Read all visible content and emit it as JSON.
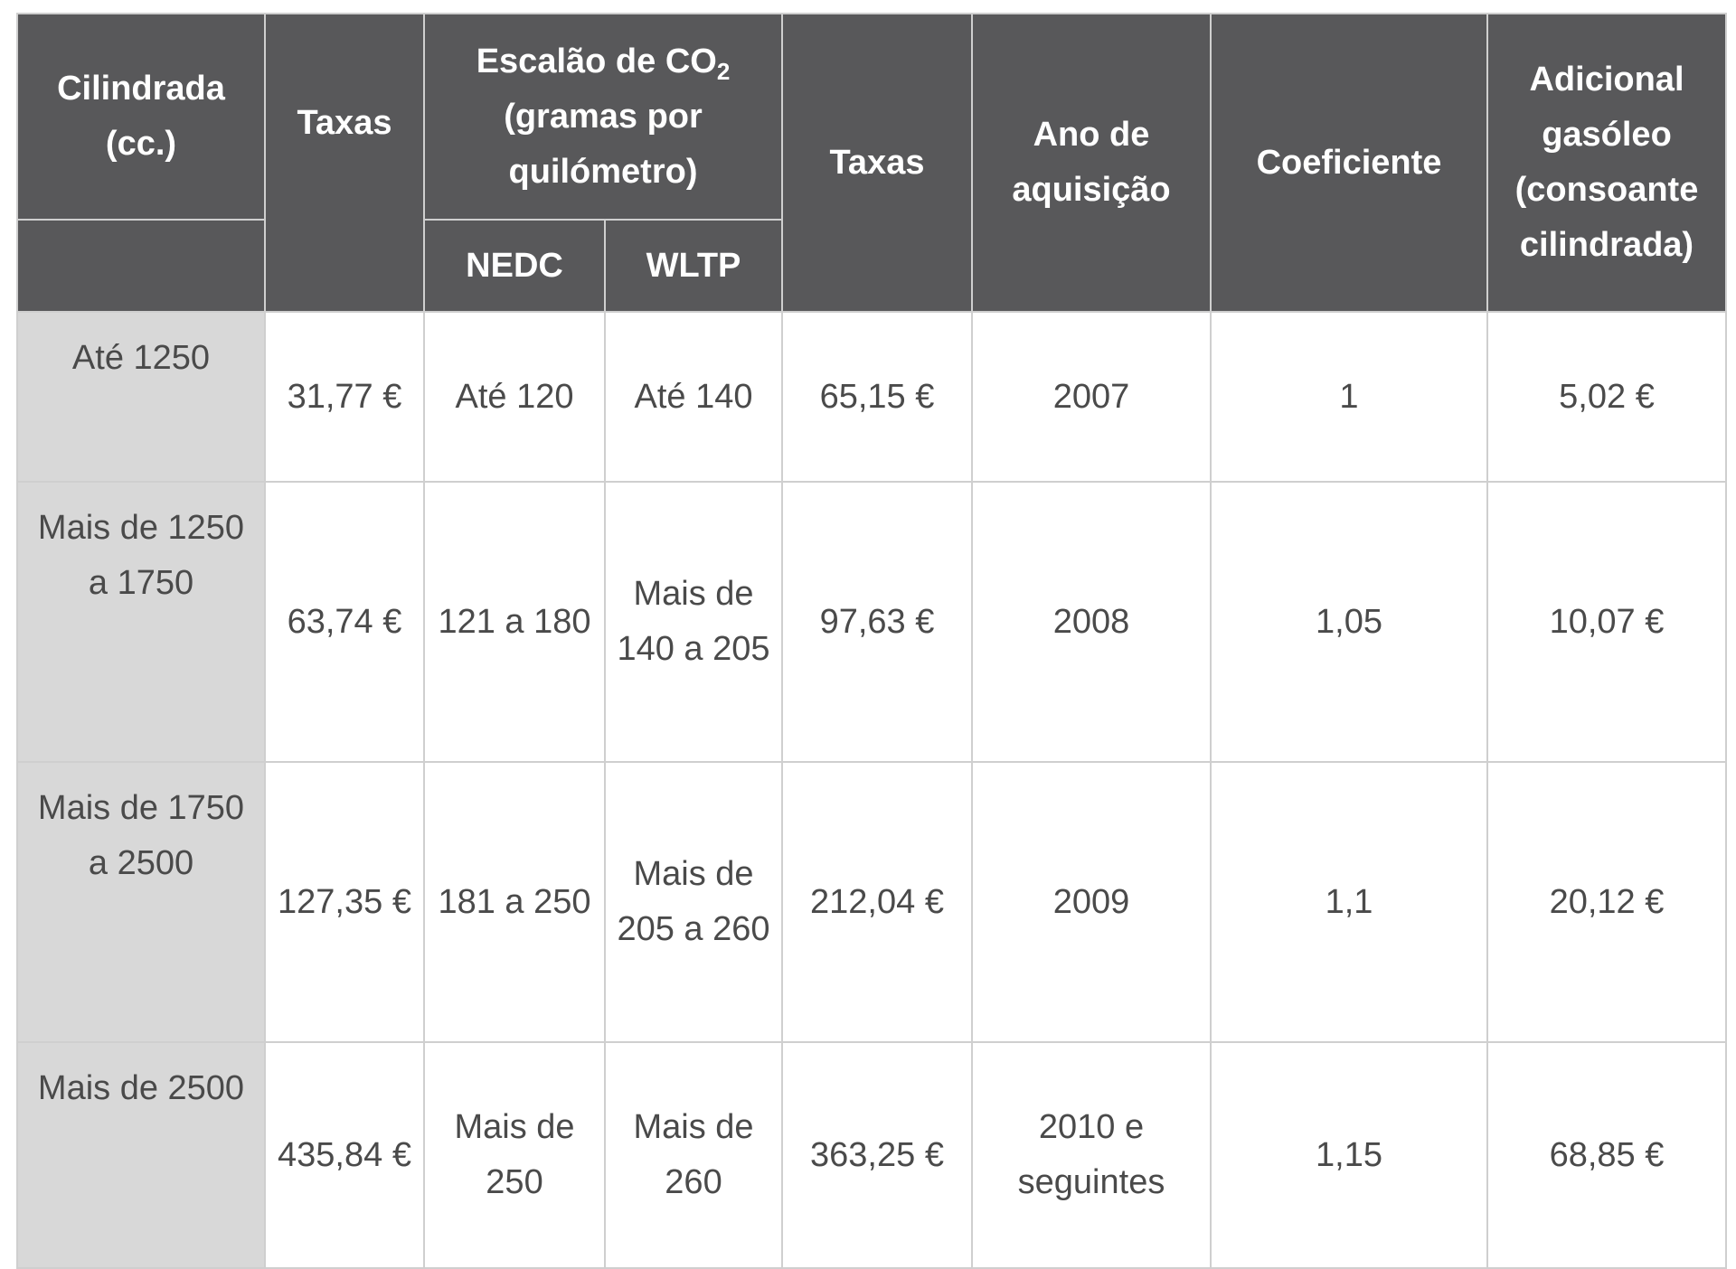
{
  "header": {
    "cilindrada": "Cilindrada (cc.)",
    "taxas_1": "Taxas",
    "escalao_main": "Escalão de CO",
    "escalao_sub": "2",
    "escalao_rest": "(gramas por quilómetro)",
    "nedc": "NEDC",
    "wltp": "WLTP",
    "taxas_2": "Taxas",
    "ano": "Ano de aquisição",
    "coeficiente": "Coeficiente",
    "adicional": "Adicional gasóleo (consoante cilindrada)"
  },
  "rows": [
    {
      "cilindrada": "Até 1250",
      "taxas1": "31,77 €",
      "nedc": "Até 120",
      "wltp": "Até 140",
      "taxas2": "65,15 €",
      "ano": "2007",
      "coef": "1",
      "adicional": "5,02 €"
    },
    {
      "cilindrada": "Mais de 1250 a 1750",
      "taxas1": "63,74 €",
      "nedc": "121 a 180",
      "wltp": "Mais de 140 a 205",
      "taxas2": "97,63 €",
      "ano": "2008",
      "coef": "1,05",
      "adicional": "10,07 €"
    },
    {
      "cilindrada": "Mais de 1750 a 2500",
      "taxas1": "127,35 €",
      "nedc": "181 a 250",
      "wltp": "Mais de 205 a 260",
      "taxas2": "212,04 €",
      "ano": "2009",
      "coef": "1,1",
      "adicional": "20,12 €"
    },
    {
      "cilindrada": "Mais de 2500",
      "taxas1": "435,84 €",
      "nedc": "Mais de 250",
      "wltp": "Mais de 260",
      "taxas2": "363,25 €",
      "ano": "2010 e seguintes",
      "coef": "1,15",
      "adicional": "68,85 €"
    }
  ],
  "colors": {
    "header_bg": "#58585a",
    "first_col_bg": "#d8d8d8",
    "text": "#4a4a4a",
    "border": "#cfcfcf"
  }
}
